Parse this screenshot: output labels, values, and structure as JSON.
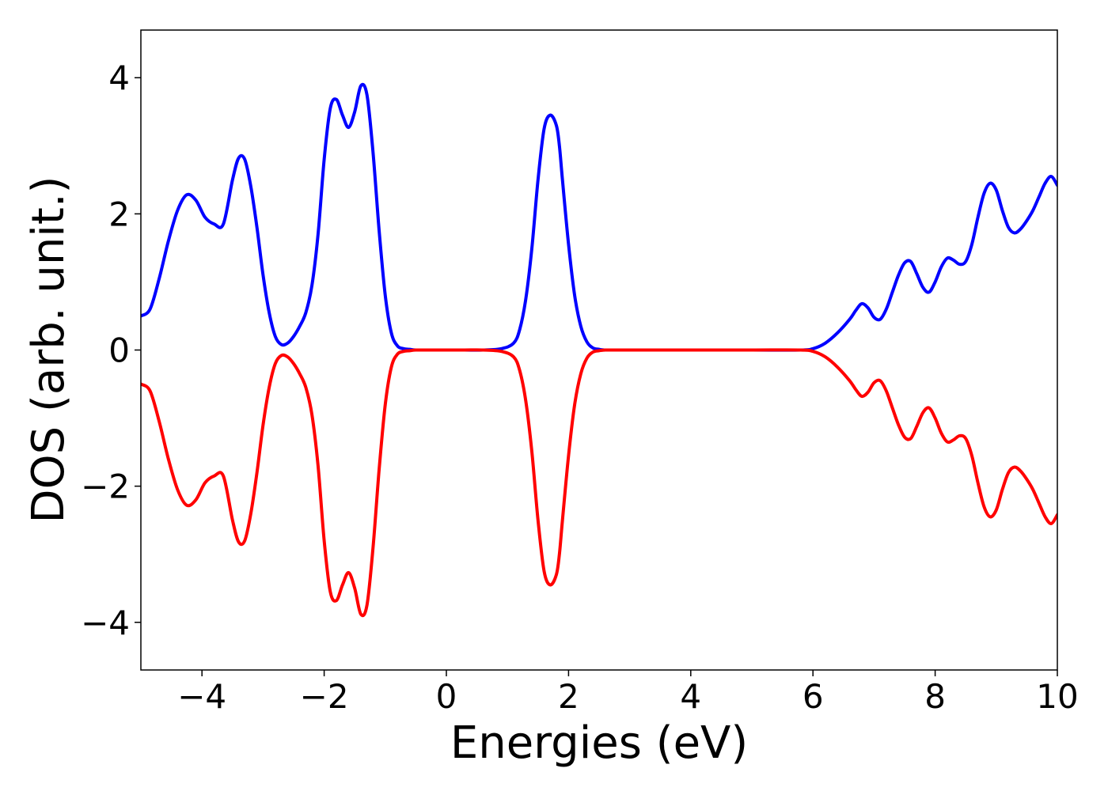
{
  "chart_data": {
    "type": "line",
    "title": "",
    "xlabel": "Energies (eV)",
    "ylabel": "DOS (arb. unit.)",
    "xlim": [
      -5,
      10
    ],
    "ylim": [
      -4.7,
      4.7
    ],
    "xticks": [
      -4,
      -2,
      0,
      2,
      4,
      6,
      8,
      10
    ],
    "xtick_labels": [
      "−4",
      "−2",
      "0",
      "2",
      "4",
      "6",
      "8",
      "10"
    ],
    "yticks": [
      -4,
      -2,
      0,
      2,
      4
    ],
    "ytick_labels": [
      "−4",
      "−2",
      "0",
      "2",
      "4"
    ],
    "grid": false,
    "legend": "none",
    "series": [
      {
        "color": "#0000ff",
        "x": [
          -5.0,
          -4.85,
          -4.7,
          -4.55,
          -4.4,
          -4.25,
          -4.1,
          -3.95,
          -3.8,
          -3.65,
          -3.5,
          -3.4,
          -3.3,
          -3.2,
          -3.1,
          -3.0,
          -2.9,
          -2.8,
          -2.7,
          -2.6,
          -2.5,
          -2.4,
          -2.3,
          -2.2,
          -2.1,
          -2.0,
          -1.9,
          -1.8,
          -1.7,
          -1.6,
          -1.5,
          -1.4,
          -1.3,
          -1.2,
          -1.1,
          -1.0,
          -0.9,
          -0.8,
          -0.7,
          -0.6,
          -0.5,
          -0.3,
          0.0,
          0.3,
          0.6,
          0.9,
          1.1,
          1.2,
          1.3,
          1.4,
          1.5,
          1.6,
          1.7,
          1.8,
          1.85,
          1.9,
          2.0,
          2.1,
          2.2,
          2.3,
          2.4,
          2.5,
          2.6,
          2.8,
          3.0,
          4.0,
          5.0,
          5.8,
          6.0,
          6.2,
          6.4,
          6.6,
          6.7,
          6.8,
          6.9,
          7.0,
          7.1,
          7.2,
          7.3,
          7.4,
          7.5,
          7.6,
          7.7,
          7.8,
          7.9,
          8.0,
          8.1,
          8.2,
          8.3,
          8.4,
          8.5,
          8.6,
          8.7,
          8.8,
          8.9,
          9.0,
          9.1,
          9.2,
          9.3,
          9.4,
          9.5,
          9.6,
          9.7,
          9.8,
          9.9,
          10.0
        ],
        "y": [
          0.5,
          0.6,
          1.05,
          1.6,
          2.05,
          2.28,
          2.2,
          1.95,
          1.85,
          1.85,
          2.5,
          2.82,
          2.8,
          2.4,
          1.8,
          1.1,
          0.55,
          0.2,
          0.08,
          0.1,
          0.2,
          0.35,
          0.55,
          0.95,
          1.7,
          2.8,
          3.55,
          3.68,
          3.45,
          3.27,
          3.5,
          3.88,
          3.75,
          2.9,
          1.75,
          0.8,
          0.25,
          0.06,
          0.02,
          0.01,
          0.0,
          0.0,
          0.0,
          0.0,
          0.0,
          0.02,
          0.1,
          0.3,
          0.75,
          1.5,
          2.5,
          3.25,
          3.45,
          3.3,
          3.0,
          2.5,
          1.55,
          0.8,
          0.35,
          0.12,
          0.03,
          0.01,
          0.0,
          0.0,
          0.0,
          0.0,
          0.0,
          0.0,
          0.02,
          0.1,
          0.25,
          0.45,
          0.58,
          0.68,
          0.62,
          0.48,
          0.45,
          0.6,
          0.85,
          1.1,
          1.28,
          1.3,
          1.12,
          0.92,
          0.85,
          1.0,
          1.22,
          1.35,
          1.32,
          1.26,
          1.3,
          1.55,
          1.95,
          2.3,
          2.45,
          2.35,
          2.05,
          1.8,
          1.72,
          1.78,
          1.9,
          2.05,
          2.25,
          2.45,
          2.55,
          2.42
        ]
      },
      {
        "color": "#ff0000",
        "x": [
          -5.0,
          -4.85,
          -4.7,
          -4.55,
          -4.4,
          -4.25,
          -4.1,
          -3.95,
          -3.8,
          -3.65,
          -3.5,
          -3.4,
          -3.3,
          -3.2,
          -3.1,
          -3.0,
          -2.9,
          -2.8,
          -2.7,
          -2.6,
          -2.5,
          -2.4,
          -2.3,
          -2.2,
          -2.1,
          -2.0,
          -1.9,
          -1.8,
          -1.7,
          -1.6,
          -1.5,
          -1.4,
          -1.3,
          -1.2,
          -1.1,
          -1.0,
          -0.9,
          -0.8,
          -0.7,
          -0.6,
          -0.5,
          -0.3,
          0.0,
          0.3,
          0.6,
          0.9,
          1.1,
          1.2,
          1.3,
          1.4,
          1.5,
          1.6,
          1.7,
          1.8,
          1.85,
          1.9,
          2.0,
          2.1,
          2.2,
          2.3,
          2.4,
          2.5,
          2.6,
          2.8,
          3.0,
          4.0,
          5.0,
          5.8,
          6.0,
          6.2,
          6.4,
          6.6,
          6.7,
          6.8,
          6.9,
          7.0,
          7.1,
          7.2,
          7.3,
          7.4,
          7.5,
          7.6,
          7.7,
          7.8,
          7.9,
          8.0,
          8.1,
          8.2,
          8.3,
          8.4,
          8.5,
          8.6,
          8.7,
          8.8,
          8.9,
          9.0,
          9.1,
          9.2,
          9.3,
          9.4,
          9.5,
          9.6,
          9.7,
          9.8,
          9.9,
          10.0
        ],
        "y": [
          -0.5,
          -0.6,
          -1.05,
          -1.6,
          -2.05,
          -2.28,
          -2.2,
          -1.95,
          -1.85,
          -1.85,
          -2.5,
          -2.82,
          -2.8,
          -2.4,
          -1.8,
          -1.1,
          -0.55,
          -0.2,
          -0.08,
          -0.1,
          -0.2,
          -0.35,
          -0.55,
          -0.95,
          -1.7,
          -2.8,
          -3.55,
          -3.68,
          -3.45,
          -3.27,
          -3.5,
          -3.88,
          -3.75,
          -2.9,
          -1.75,
          -0.8,
          -0.25,
          -0.06,
          -0.02,
          -0.01,
          0.0,
          0.0,
          0.0,
          0.0,
          0.0,
          -0.02,
          -0.1,
          -0.3,
          -0.75,
          -1.5,
          -2.5,
          -3.25,
          -3.45,
          -3.3,
          -3.0,
          -2.5,
          -1.55,
          -0.8,
          -0.35,
          -0.12,
          -0.03,
          -0.01,
          0.0,
          0.0,
          0.0,
          0.0,
          0.0,
          0.0,
          -0.02,
          -0.1,
          -0.25,
          -0.45,
          -0.58,
          -0.68,
          -0.62,
          -0.48,
          -0.45,
          -0.6,
          -0.85,
          -1.1,
          -1.28,
          -1.3,
          -1.12,
          -0.92,
          -0.85,
          -1.0,
          -1.22,
          -1.35,
          -1.32,
          -1.26,
          -1.3,
          -1.55,
          -1.95,
          -2.3,
          -2.45,
          -2.35,
          -2.05,
          -1.8,
          -1.72,
          -1.78,
          -1.9,
          -2.05,
          -2.25,
          -2.45,
          -2.55,
          -2.42
        ]
      }
    ]
  }
}
